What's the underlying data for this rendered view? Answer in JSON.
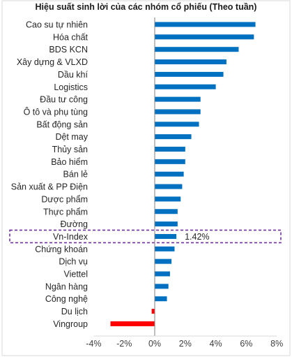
{
  "chart_data": {
    "type": "bar",
    "orientation": "horizontal",
    "title": "Hiệu suất sinh lời của các nhóm cổ phiếu (Theo tuần)",
    "categories": [
      "Cao su tự nhiên",
      "Hóa chất",
      "BDS KCN",
      "Xây dựng & VLXD",
      "Dầu khí",
      "Logistics",
      "Đầu tư công",
      "Ô tô và phụ tùng",
      "Bất động sản",
      "Dệt may",
      "Thủy sản",
      "Bảo hiểm",
      "Bán lẻ",
      "Sản xuất & PP Điện",
      "Dược phẩm",
      "Thực phẩm",
      "Đường",
      "Vn-Index",
      "Chứng khoán",
      "Dịch vụ",
      "Viettel",
      "Ngân hàng",
      "Công nghệ",
      "Du lịch",
      "Vingroup"
    ],
    "values": [
      6.6,
      6.5,
      5.5,
      4.7,
      4.5,
      4.0,
      3.0,
      3.0,
      2.9,
      2.4,
      2.0,
      2.0,
      1.9,
      1.8,
      1.7,
      1.5,
      1.5,
      1.42,
      1.3,
      1.1,
      1.0,
      0.9,
      0.8,
      -0.2,
      -2.9
    ],
    "highlight": {
      "category": "Vn-Index",
      "label": "1.42%",
      "border_color": "#7030a0"
    },
    "xlim": [
      -4,
      8
    ],
    "xticks": [
      -4,
      -2,
      0,
      2,
      4,
      6,
      8
    ],
    "tick_labels": [
      "-4%",
      "-2%",
      "0%",
      "2%",
      "4%",
      "6%",
      "8%"
    ],
    "colors": {
      "positive": "#0070c0",
      "negative": "#ff0000",
      "axis": "#7f7f7f"
    },
    "grid": false,
    "legend": "none"
  }
}
